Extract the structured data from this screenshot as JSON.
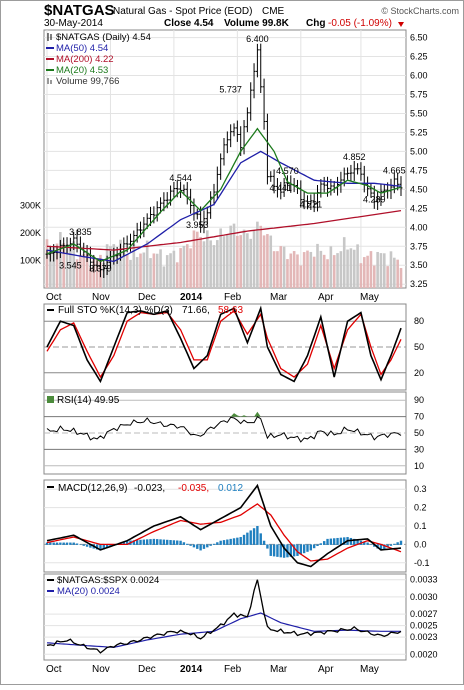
{
  "header": {
    "symbol": "$NATGAS",
    "name": "Natural Gas - Spot Price (EOD)",
    "exchange": "CME",
    "watermark": "© StockCharts.com",
    "date": "30-May-2014",
    "close": "Close 4.54",
    "volume": "Volume 99.8K",
    "chg_label": "Chg",
    "chg_value": "-0.05 (-1.09%)"
  },
  "colors": {
    "price": "#000000",
    "ma50": "#1f1fa8",
    "ma200": "#b0102a",
    "ma20": "#1c7a1c",
    "volume": "#c9b3b3",
    "macd": "#000000",
    "signal": "#e00000",
    "histogram": "#1f7fbf"
  },
  "x_axis": {
    "top_labels": [
      "Oct",
      "Nov",
      "Dec",
      "2014",
      "Feb",
      "Mar",
      "Apr",
      "May"
    ],
    "bottom_labels": [
      "Oct",
      "Nov",
      "Dec",
      "2014",
      "Feb",
      "Mar",
      "Apr",
      "May"
    ]
  },
  "chart_data": [
    {
      "type": "ohlc",
      "panel": "price",
      "legend": [
        {
          "label": "$NATGAS (Daily) 4.54",
          "color": "#000000"
        },
        {
          "label": "MA(50) 4.54",
          "color": "#1f1fa8"
        },
        {
          "label": "MA(200) 4.22",
          "color": "#b0102a"
        },
        {
          "label": "MA(20) 4.53",
          "color": "#1c7a1c"
        },
        {
          "label": "Volume 99,766",
          "color": "#999999"
        }
      ],
      "y_ticks": [
        "6.50",
        "6.25",
        "6.00",
        "5.75",
        "5.50",
        "5.25",
        "5.00",
        "4.75",
        "4.50",
        "4.25",
        "4.00",
        "3.75",
        "3.50",
        "3.25"
      ],
      "ylim": [
        3.2,
        6.6
      ],
      "volume_ticks": [
        "300K",
        "200K",
        "100K"
      ],
      "annotations": [
        {
          "text": "6.400",
          "i": 63,
          "v": 6.4
        },
        {
          "text": "5.737",
          "i": 55,
          "v": 5.74
        },
        {
          "text": "4.544",
          "i": 40,
          "v": 4.57
        },
        {
          "text": "3.835",
          "i": 10,
          "v": 3.86
        },
        {
          "text": "3.545",
          "i": 7,
          "v": 3.42
        },
        {
          "text": "3.379",
          "i": 16,
          "v": 3.38
        },
        {
          "text": "3.953",
          "i": 45,
          "v": 3.95
        },
        {
          "text": "4.570",
          "i": 72,
          "v": 4.66
        },
        {
          "text": "4.441",
          "i": 70,
          "v": 4.44
        },
        {
          "text": "4.221",
          "i": 79,
          "v": 4.22
        },
        {
          "text": "4.852",
          "i": 92,
          "v": 4.85
        },
        {
          "text": "4.289",
          "i": 98,
          "v": 4.29
        },
        {
          "text": "4.665",
          "i": 104,
          "v": 4.67
        }
      ],
      "price_anchors": [
        [
          0,
          3.62
        ],
        [
          3,
          3.7
        ],
        [
          6,
          3.78
        ],
        [
          8,
          3.82
        ],
        [
          10,
          3.75
        ],
        [
          12,
          3.6
        ],
        [
          14,
          3.52
        ],
        [
          16,
          3.42
        ],
        [
          18,
          3.55
        ],
        [
          20,
          3.62
        ],
        [
          23,
          3.75
        ],
        [
          26,
          3.88
        ],
        [
          29,
          4.05
        ],
        [
          32,
          4.2
        ],
        [
          35,
          4.35
        ],
        [
          38,
          4.5
        ],
        [
          40,
          4.52
        ],
        [
          42,
          4.4
        ],
        [
          44,
          4.2
        ],
        [
          46,
          4.05
        ],
        [
          48,
          4.2
        ],
        [
          50,
          4.5
        ],
        [
          52,
          4.9
        ],
        [
          54,
          5.2
        ],
        [
          56,
          5.3
        ],
        [
          58,
          5.1
        ],
        [
          60,
          5.5
        ],
        [
          62,
          6.1
        ],
        [
          63,
          6.3
        ],
        [
          65,
          5.4
        ],
        [
          66,
          4.7
        ],
        [
          68,
          4.55
        ],
        [
          70,
          4.48
        ],
        [
          72,
          4.6
        ],
        [
          74,
          4.55
        ],
        [
          76,
          4.4
        ],
        [
          78,
          4.3
        ],
        [
          80,
          4.35
        ],
        [
          82,
          4.55
        ],
        [
          84,
          4.55
        ],
        [
          86,
          4.5
        ],
        [
          88,
          4.65
        ],
        [
          90,
          4.7
        ],
        [
          92,
          4.78
        ],
        [
          94,
          4.7
        ],
        [
          96,
          4.5
        ],
        [
          98,
          4.35
        ],
        [
          100,
          4.45
        ],
        [
          102,
          4.5
        ],
        [
          104,
          4.6
        ],
        [
          106,
          4.54
        ]
      ],
      "ma50_anchors": [
        [
          0,
          3.7
        ],
        [
          10,
          3.62
        ],
        [
          20,
          3.55
        ],
        [
          30,
          3.78
        ],
        [
          40,
          4.1
        ],
        [
          50,
          4.3
        ],
        [
          58,
          4.85
        ],
        [
          64,
          5.0
        ],
        [
          70,
          4.85
        ],
        [
          80,
          4.62
        ],
        [
          90,
          4.58
        ],
        [
          98,
          4.58
        ],
        [
          106,
          4.54
        ]
      ],
      "ma200_anchors": [
        [
          0,
          3.75
        ],
        [
          20,
          3.7
        ],
        [
          40,
          3.8
        ],
        [
          60,
          3.95
        ],
        [
          80,
          4.05
        ],
        [
          106,
          4.22
        ]
      ],
      "ma20_anchors": [
        [
          0,
          3.65
        ],
        [
          8,
          3.78
        ],
        [
          16,
          3.55
        ],
        [
          24,
          3.7
        ],
        [
          34,
          4.2
        ],
        [
          40,
          4.48
        ],
        [
          46,
          4.22
        ],
        [
          52,
          4.5
        ],
        [
          58,
          5.0
        ],
        [
          63,
          5.3
        ],
        [
          68,
          5.0
        ],
        [
          72,
          4.6
        ],
        [
          78,
          4.45
        ],
        [
          84,
          4.45
        ],
        [
          90,
          4.62
        ],
        [
          96,
          4.55
        ],
        [
          100,
          4.45
        ],
        [
          106,
          4.53
        ]
      ],
      "volume_anchors": [
        [
          0,
          150
        ],
        [
          5,
          180
        ],
        [
          10,
          120
        ],
        [
          15,
          100
        ],
        [
          20,
          160
        ],
        [
          25,
          120
        ],
        [
          30,
          140
        ],
        [
          35,
          110
        ],
        [
          40,
          130
        ],
        [
          45,
          200
        ],
        [
          50,
          170
        ],
        [
          55,
          220
        ],
        [
          60,
          190
        ],
        [
          64,
          230
        ],
        [
          68,
          150
        ],
        [
          72,
          130
        ],
        [
          76,
          110
        ],
        [
          80,
          140
        ],
        [
          85,
          120
        ],
        [
          90,
          160
        ],
        [
          95,
          110
        ],
        [
          100,
          120
        ],
        [
          106,
          100
        ]
      ]
    },
    {
      "type": "line",
      "panel": "stochastic",
      "legend": [
        {
          "label": "Full STO %K(14,3) %D(3)",
          "color": "#000000"
        },
        {
          "label": "71.66,",
          "color": "#000000"
        },
        {
          "label": "58.63",
          "color": "#e00000"
        }
      ],
      "y_ticks": [
        "80",
        "50",
        "20"
      ],
      "ylim": [
        0,
        100
      ],
      "k_anchors": [
        [
          0,
          50
        ],
        [
          4,
          80
        ],
        [
          8,
          75
        ],
        [
          12,
          35
        ],
        [
          16,
          10
        ],
        [
          20,
          50
        ],
        [
          24,
          90
        ],
        [
          28,
          92
        ],
        [
          32,
          88
        ],
        [
          36,
          92
        ],
        [
          40,
          60
        ],
        [
          44,
          25
        ],
        [
          48,
          40
        ],
        [
          52,
          88
        ],
        [
          56,
          95
        ],
        [
          60,
          55
        ],
        [
          64,
          95
        ],
        [
          66,
          50
        ],
        [
          70,
          18
        ],
        [
          74,
          10
        ],
        [
          78,
          40
        ],
        [
          82,
          85
        ],
        [
          86,
          15
        ],
        [
          90,
          80
        ],
        [
          94,
          90
        ],
        [
          97,
          40
        ],
        [
          100,
          12
        ],
        [
          103,
          40
        ],
        [
          106,
          72
        ]
      ],
      "d_anchors": [
        [
          0,
          45
        ],
        [
          4,
          70
        ],
        [
          8,
          78
        ],
        [
          12,
          45
        ],
        [
          16,
          15
        ],
        [
          20,
          40
        ],
        [
          24,
          80
        ],
        [
          28,
          90
        ],
        [
          32,
          88
        ],
        [
          36,
          90
        ],
        [
          40,
          70
        ],
        [
          44,
          35
        ],
        [
          48,
          35
        ],
        [
          52,
          80
        ],
        [
          56,
          92
        ],
        [
          60,
          65
        ],
        [
          64,
          88
        ],
        [
          66,
          60
        ],
        [
          70,
          25
        ],
        [
          74,
          15
        ],
        [
          78,
          30
        ],
        [
          82,
          75
        ],
        [
          86,
          25
        ],
        [
          90,
          70
        ],
        [
          94,
          88
        ],
        [
          97,
          50
        ],
        [
          100,
          18
        ],
        [
          103,
          35
        ],
        [
          106,
          59
        ]
      ]
    },
    {
      "type": "line",
      "panel": "rsi",
      "legend": [
        {
          "label": "RSI(14) 49.95",
          "color": "#000000"
        }
      ],
      "y_ticks": [
        "90",
        "70",
        "50",
        "30",
        "10"
      ],
      "ylim": [
        0,
        100
      ],
      "rsi_anchors": [
        [
          0,
          52
        ],
        [
          5,
          55
        ],
        [
          10,
          50
        ],
        [
          15,
          42
        ],
        [
          20,
          55
        ],
        [
          25,
          62
        ],
        [
          30,
          65
        ],
        [
          35,
          60
        ],
        [
          40,
          58
        ],
        [
          45,
          45
        ],
        [
          50,
          58
        ],
        [
          55,
          68
        ],
        [
          60,
          62
        ],
        [
          64,
          68
        ],
        [
          66,
          45
        ],
        [
          70,
          48
        ],
        [
          74,
          44
        ],
        [
          78,
          42
        ],
        [
          82,
          52
        ],
        [
          86,
          48
        ],
        [
          90,
          55
        ],
        [
          94,
          50
        ],
        [
          98,
          45
        ],
        [
          102,
          48
        ],
        [
          106,
          50
        ]
      ]
    },
    {
      "type": "line",
      "panel": "macd",
      "legend": [
        {
          "label": "MACD(12,26,9)",
          "color": "#000000"
        },
        {
          "label": "-0.023,",
          "color": "#000000"
        },
        {
          "label": "-0.035,",
          "color": "#e00000"
        },
        {
          "label": "0.012",
          "color": "#1f7fbf"
        }
      ],
      "y_ticks": [
        "0.3",
        "0.2",
        "0.1",
        "0.0",
        "-0.1"
      ],
      "ylim": [
        -0.15,
        0.35
      ],
      "macd_anchors": [
        [
          0,
          0.02
        ],
        [
          8,
          0.05
        ],
        [
          16,
          -0.03
        ],
        [
          24,
          0.02
        ],
        [
          32,
          0.1
        ],
        [
          40,
          0.15
        ],
        [
          46,
          0.08
        ],
        [
          52,
          0.14
        ],
        [
          58,
          0.2
        ],
        [
          63,
          0.32
        ],
        [
          67,
          0.1
        ],
        [
          71,
          -0.02
        ],
        [
          75,
          -0.1
        ],
        [
          79,
          -0.12
        ],
        [
          84,
          -0.05
        ],
        [
          90,
          0.02
        ],
        [
          96,
          0.03
        ],
        [
          100,
          -0.03
        ],
        [
          106,
          -0.02
        ]
      ],
      "signal_anchors": [
        [
          0,
          0.01
        ],
        [
          8,
          0.04
        ],
        [
          16,
          0.0
        ],
        [
          24,
          0.0
        ],
        [
          32,
          0.07
        ],
        [
          40,
          0.13
        ],
        [
          46,
          0.11
        ],
        [
          52,
          0.12
        ],
        [
          58,
          0.16
        ],
        [
          63,
          0.22
        ],
        [
          67,
          0.16
        ],
        [
          71,
          0.05
        ],
        [
          75,
          -0.04
        ],
        [
          79,
          -0.09
        ],
        [
          84,
          -0.08
        ],
        [
          90,
          -0.02
        ],
        [
          96,
          0.02
        ],
        [
          100,
          0.0
        ],
        [
          106,
          -0.04
        ]
      ]
    },
    {
      "type": "line",
      "panel": "ratio",
      "legend": [
        {
          "label": "$NATGAS:$SPX 0.0024",
          "color": "#000000"
        },
        {
          "label": "MA(20) 0.0024",
          "color": "#1f1fa8"
        }
      ],
      "y_ticks": [
        "0.0033",
        "0.0030",
        "0.0027",
        "0.0025",
        "0.0023",
        "0.0020"
      ],
      "ylim": [
        0.0019,
        0.0034
      ],
      "ratio_anchors": [
        [
          0,
          0.00215
        ],
        [
          6,
          0.00225
        ],
        [
          12,
          0.00212
        ],
        [
          16,
          0.00205
        ],
        [
          20,
          0.00215
        ],
        [
          26,
          0.00222
        ],
        [
          32,
          0.00232
        ],
        [
          38,
          0.0024
        ],
        [
          42,
          0.00238
        ],
        [
          46,
          0.00228
        ],
        [
          52,
          0.0025
        ],
        [
          56,
          0.0027
        ],
        [
          60,
          0.00265
        ],
        [
          63,
          0.0033
        ],
        [
          66,
          0.00245
        ],
        [
          70,
          0.0024
        ],
        [
          76,
          0.00235
        ],
        [
          82,
          0.00238
        ],
        [
          88,
          0.00242
        ],
        [
          92,
          0.00245
        ],
        [
          96,
          0.00238
        ],
        [
          100,
          0.00232
        ],
        [
          106,
          0.0024
        ]
      ],
      "ratio_ma_anchors": [
        [
          0,
          0.0022
        ],
        [
          12,
          0.00215
        ],
        [
          20,
          0.00212
        ],
        [
          30,
          0.00225
        ],
        [
          40,
          0.00235
        ],
        [
          50,
          0.0024
        ],
        [
          58,
          0.00262
        ],
        [
          64,
          0.00272
        ],
        [
          70,
          0.00255
        ],
        [
          80,
          0.0024
        ],
        [
          90,
          0.00242
        ],
        [
          100,
          0.0024
        ],
        [
          106,
          0.0024
        ]
      ]
    }
  ]
}
